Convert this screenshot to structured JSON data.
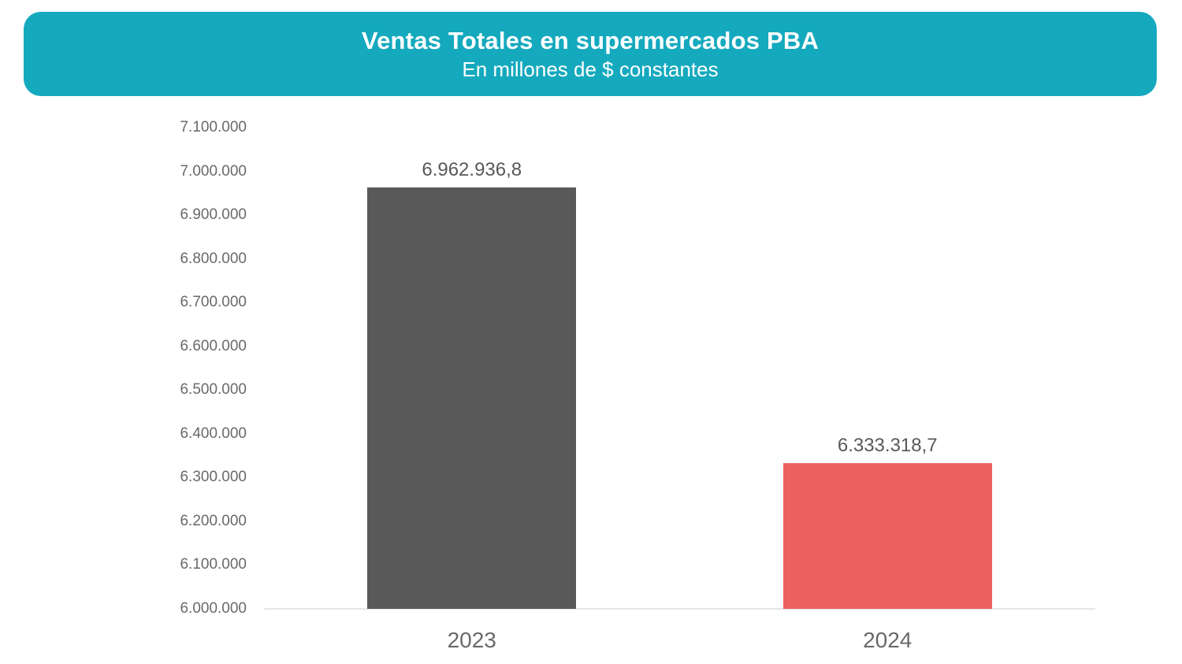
{
  "header": {
    "title": "Ventas Totales en supermercados PBA",
    "subtitle": "En millones de $ constantes",
    "background_color": "#15A9BE",
    "text_color": "#FFFFFF"
  },
  "chart_data": {
    "type": "bar",
    "title": "Ventas Totales en supermercados PBA",
    "subtitle": "En millones de $ constantes",
    "categories": [
      "2023",
      "2024"
    ],
    "values": [
      6962936.8,
      6333318.7
    ],
    "data_labels": [
      "6.962.936,8",
      "6.333.318,7"
    ],
    "bar_colors": [
      "#595959",
      "#EC6060"
    ],
    "ylim": [
      6000000,
      7100000
    ],
    "ytick_step": 100000,
    "ytick_labels": [
      "6.000.000",
      "6.100.000",
      "6.200.000",
      "6.300.000",
      "6.400.000",
      "6.500.000",
      "6.600.000",
      "6.700.000",
      "6.800.000",
      "6.900.000",
      "7.000.000",
      "7.100.000"
    ],
    "grid": false,
    "legend": false,
    "axis_line_color": "#E6E6E6",
    "tick_label_color": "#696969",
    "data_label_color": "#595959",
    "xlabel": "",
    "ylabel": ""
  }
}
